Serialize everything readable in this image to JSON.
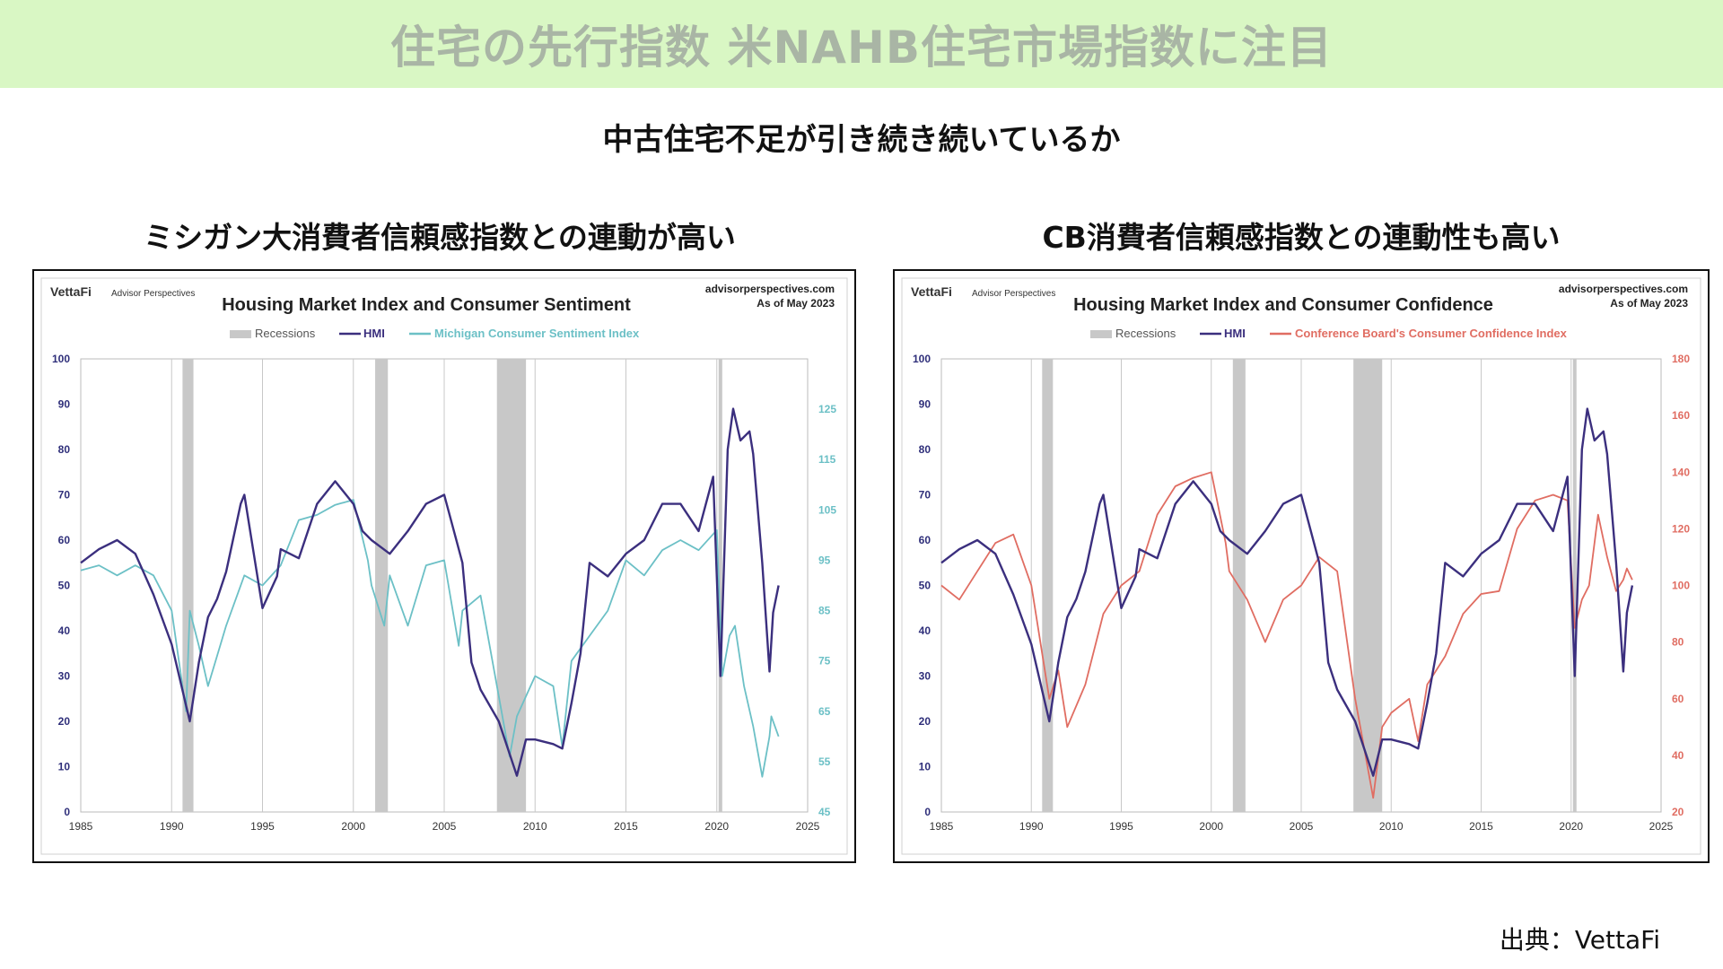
{
  "banner": {
    "title": "住宅の先行指数 米NAHB住宅市場指数に注目"
  },
  "subtitle": "中古住宅不足が引き続き続いているか",
  "source_label": "出典：VettaFi",
  "colors": {
    "banner_bg": "#d9f7c4",
    "hmi": "#3b2f7e",
    "michigan": "#6cc0c6",
    "conference": "#e06d62",
    "recession": "#c8c8c8"
  },
  "panels": [
    {
      "heading": "ミシガン大消費者信頼感指数との連動が高い"
    },
    {
      "heading": "CB消費者信頼感指数との連動性も高い"
    }
  ],
  "chart_data": [
    {
      "type": "line",
      "brand": "VettaFi",
      "brand_sub": "Advisor Perspectives",
      "title": "Housing Market Index and Consumer Sentiment",
      "site": "advisorperspectives.com",
      "as_of": "As of May 2023",
      "legend": [
        "Recessions",
        "HMI",
        "Michigan Consumer Sentiment Index"
      ],
      "legend_placement": "top-center",
      "grid": true,
      "xlim": [
        1985,
        2025
      ],
      "x_ticks": [
        "1985",
        "1990",
        "1995",
        "2000",
        "2005",
        "2010",
        "2015",
        "2020",
        "2025"
      ],
      "ylim_left": [
        0,
        100
      ],
      "y_ticks_left": [
        "0",
        "10",
        "20",
        "30",
        "40",
        "50",
        "60",
        "70",
        "80",
        "90",
        "100"
      ],
      "ylim_right": [
        45,
        135
      ],
      "y_ticks_right": [
        "45",
        "55",
        "65",
        "75",
        "85",
        "95",
        "105",
        "115",
        "125"
      ],
      "recessions": [
        [
          1990.6,
          1991.2
        ],
        [
          2001.2,
          2001.9
        ],
        [
          2007.9,
          2009.5
        ],
        [
          2020.1,
          2020.3
        ]
      ],
      "series": [
        {
          "name": "HMI",
          "axis": "left",
          "color": "#3b2f7e",
          "points": [
            [
              1985,
              55
            ],
            [
              1986,
              58
            ],
            [
              1987,
              60
            ],
            [
              1988,
              57
            ],
            [
              1989,
              48
            ],
            [
              1990,
              37
            ],
            [
              1991,
              20
            ],
            [
              1991.5,
              33
            ],
            [
              1992,
              43
            ],
            [
              1992.5,
              47
            ],
            [
              1993,
              53
            ],
            [
              1993.8,
              68
            ],
            [
              1994,
              70
            ],
            [
              1995,
              45
            ],
            [
              1995.8,
              52
            ],
            [
              1996,
              58
            ],
            [
              1997,
              56
            ],
            [
              1998,
              68
            ],
            [
              1999,
              73
            ],
            [
              2000,
              68
            ],
            [
              2000.5,
              62
            ],
            [
              2001,
              60
            ],
            [
              2002,
              57
            ],
            [
              2003,
              62
            ],
            [
              2004,
              68
            ],
            [
              2005,
              70
            ],
            [
              2006,
              55
            ],
            [
              2006.5,
              33
            ],
            [
              2007,
              27
            ],
            [
              2008,
              20
            ],
            [
              2009,
              8
            ],
            [
              2009.5,
              16
            ],
            [
              2010,
              16
            ],
            [
              2011,
              15
            ],
            [
              2011.5,
              14
            ],
            [
              2012,
              24
            ],
            [
              2012.5,
              35
            ],
            [
              2013,
              55
            ],
            [
              2014,
              52
            ],
            [
              2015,
              57
            ],
            [
              2016,
              60
            ],
            [
              2017,
              68
            ],
            [
              2018,
              68
            ],
            [
              2019,
              62
            ],
            [
              2019.8,
              74
            ],
            [
              2020.2,
              30
            ],
            [
              2020.6,
              80
            ],
            [
              2020.9,
              89
            ],
            [
              2021.3,
              82
            ],
            [
              2021.8,
              84
            ],
            [
              2022,
              79
            ],
            [
              2022.5,
              55
            ],
            [
              2022.9,
              31
            ],
            [
              2023.1,
              44
            ],
            [
              2023.4,
              50
            ]
          ]
        },
        {
          "name": "Michigan Consumer Sentiment Index",
          "axis": "right",
          "color": "#6cc0c6",
          "points": [
            [
              1985,
              93
            ],
            [
              1986,
              94
            ],
            [
              1987,
              92
            ],
            [
              1988,
              94
            ],
            [
              1989,
              92
            ],
            [
              1990,
              85
            ],
            [
              1990.8,
              65
            ],
            [
              1991,
              85
            ],
            [
              1991.5,
              78
            ],
            [
              1992,
              70
            ],
            [
              1992.5,
              76
            ],
            [
              1993,
              82
            ],
            [
              1994,
              92
            ],
            [
              1995,
              90
            ],
            [
              1996,
              94
            ],
            [
              1997,
              103
            ],
            [
              1998,
              104
            ],
            [
              1999,
              106
            ],
            [
              2000,
              107
            ],
            [
              2000.8,
              95
            ],
            [
              2001,
              90
            ],
            [
              2001.7,
              82
            ],
            [
              2002,
              92
            ],
            [
              2003,
              82
            ],
            [
              2004,
              94
            ],
            [
              2005,
              95
            ],
            [
              2005.8,
              78
            ],
            [
              2006,
              85
            ],
            [
              2007,
              88
            ],
            [
              2008,
              68
            ],
            [
              2008.6,
              56
            ],
            [
              2009,
              64
            ],
            [
              2010,
              72
            ],
            [
              2011,
              70
            ],
            [
              2011.5,
              58
            ],
            [
              2012,
              75
            ],
            [
              2013,
              80
            ],
            [
              2014,
              85
            ],
            [
              2015,
              95
            ],
            [
              2016,
              92
            ],
            [
              2017,
              97
            ],
            [
              2018,
              99
            ],
            [
              2019,
              97
            ],
            [
              2020,
              101
            ],
            [
              2020.3,
              72
            ],
            [
              2020.7,
              80
            ],
            [
              2021,
              82
            ],
            [
              2021.5,
              70
            ],
            [
              2022,
              62
            ],
            [
              2022.5,
              52
            ],
            [
              2022.9,
              60
            ],
            [
              2023,
              64
            ],
            [
              2023.4,
              60
            ]
          ]
        }
      ]
    },
    {
      "type": "line",
      "brand": "VettaFi",
      "brand_sub": "Advisor Perspectives",
      "title": "Housing Market Index and Consumer Confidence",
      "site": "advisorperspectives.com",
      "as_of": "As of May 2023",
      "legend": [
        "Recessions",
        "HMI",
        "Conference Board's Consumer Confidence Index"
      ],
      "legend_placement": "top-center",
      "grid": true,
      "xlim": [
        1985,
        2025
      ],
      "x_ticks": [
        "1985",
        "1990",
        "1995",
        "2000",
        "2005",
        "2010",
        "2015",
        "2020",
        "2025"
      ],
      "ylim_left": [
        0,
        100
      ],
      "y_ticks_left": [
        "0",
        "10",
        "20",
        "30",
        "40",
        "50",
        "60",
        "70",
        "80",
        "90",
        "100"
      ],
      "ylim_right": [
        20,
        180
      ],
      "y_ticks_right": [
        "20",
        "40",
        "60",
        "80",
        "100",
        "120",
        "140",
        "160",
        "180"
      ],
      "recessions": [
        [
          1990.6,
          1991.2
        ],
        [
          2001.2,
          2001.9
        ],
        [
          2007.9,
          2009.5
        ],
        [
          2020.1,
          2020.3
        ]
      ],
      "series": [
        {
          "name": "HMI",
          "axis": "left",
          "color": "#3b2f7e",
          "points": [
            [
              1985,
              55
            ],
            [
              1986,
              58
            ],
            [
              1987,
              60
            ],
            [
              1988,
              57
            ],
            [
              1989,
              48
            ],
            [
              1990,
              37
            ],
            [
              1991,
              20
            ],
            [
              1991.5,
              33
            ],
            [
              1992,
              43
            ],
            [
              1992.5,
              47
            ],
            [
              1993,
              53
            ],
            [
              1993.8,
              68
            ],
            [
              1994,
              70
            ],
            [
              1995,
              45
            ],
            [
              1995.8,
              52
            ],
            [
              1996,
              58
            ],
            [
              1997,
              56
            ],
            [
              1998,
              68
            ],
            [
              1999,
              73
            ],
            [
              2000,
              68
            ],
            [
              2000.5,
              62
            ],
            [
              2001,
              60
            ],
            [
              2002,
              57
            ],
            [
              2003,
              62
            ],
            [
              2004,
              68
            ],
            [
              2005,
              70
            ],
            [
              2006,
              55
            ],
            [
              2006.5,
              33
            ],
            [
              2007,
              27
            ],
            [
              2008,
              20
            ],
            [
              2009,
              8
            ],
            [
              2009.5,
              16
            ],
            [
              2010,
              16
            ],
            [
              2011,
              15
            ],
            [
              2011.5,
              14
            ],
            [
              2012,
              24
            ],
            [
              2012.5,
              35
            ],
            [
              2013,
              55
            ],
            [
              2014,
              52
            ],
            [
              2015,
              57
            ],
            [
              2016,
              60
            ],
            [
              2017,
              68
            ],
            [
              2018,
              68
            ],
            [
              2019,
              62
            ],
            [
              2019.8,
              74
            ],
            [
              2020.2,
              30
            ],
            [
              2020.6,
              80
            ],
            [
              2020.9,
              89
            ],
            [
              2021.3,
              82
            ],
            [
              2021.8,
              84
            ],
            [
              2022,
              79
            ],
            [
              2022.5,
              55
            ],
            [
              2022.9,
              31
            ],
            [
              2023.1,
              44
            ],
            [
              2023.4,
              50
            ]
          ]
        },
        {
          "name": "Conference Board's Consumer Confidence Index",
          "axis": "right",
          "color": "#e06d62",
          "points": [
            [
              1985,
              100
            ],
            [
              1986,
              95
            ],
            [
              1987,
              105
            ],
            [
              1988,
              115
            ],
            [
              1989,
              118
            ],
            [
              1990,
              100
            ],
            [
              1991,
              60
            ],
            [
              1991.5,
              70
            ],
            [
              1992,
              50
            ],
            [
              1993,
              65
            ],
            [
              1994,
              90
            ],
            [
              1995,
              100
            ],
            [
              1996,
              105
            ],
            [
              1997,
              125
            ],
            [
              1998,
              135
            ],
            [
              1999,
              138
            ],
            [
              2000,
              140
            ],
            [
              2000.8,
              115
            ],
            [
              2001,
              105
            ],
            [
              2002,
              95
            ],
            [
              2003,
              80
            ],
            [
              2004,
              95
            ],
            [
              2005,
              100
            ],
            [
              2006,
              110
            ],
            [
              2007,
              105
            ],
            [
              2008,
              60
            ],
            [
              2009,
              25
            ],
            [
              2009.5,
              50
            ],
            [
              2010,
              55
            ],
            [
              2011,
              60
            ],
            [
              2011.5,
              45
            ],
            [
              2012,
              65
            ],
            [
              2013,
              75
            ],
            [
              2014,
              90
            ],
            [
              2015,
              97
            ],
            [
              2016,
              98
            ],
            [
              2017,
              120
            ],
            [
              2018,
              130
            ],
            [
              2019,
              132
            ],
            [
              2019.8,
              130
            ],
            [
              2020.2,
              85
            ],
            [
              2020.6,
              95
            ],
            [
              2021,
              100
            ],
            [
              2021.5,
              125
            ],
            [
              2022,
              110
            ],
            [
              2022.5,
              98
            ],
            [
              2022.9,
              102
            ],
            [
              2023.1,
              106
            ],
            [
              2023.4,
              102
            ]
          ]
        }
      ]
    }
  ]
}
